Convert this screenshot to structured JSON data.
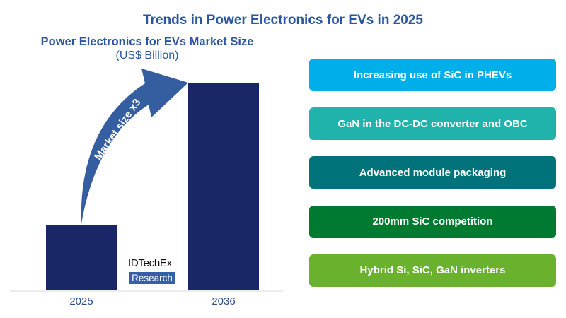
{
  "title": "Trends in Power Electronics for EVs in 2025",
  "chart_data": {
    "type": "bar",
    "title": "Power Electronics for EVs Market Size",
    "subtitle": "(US$ Billion)",
    "categories": [
      "2025",
      "2036"
    ],
    "values": [
      1,
      3.16
    ],
    "ylim": [
      0,
      3.5
    ],
    "grid": false,
    "bar_color": "#1a2766",
    "annotation": {
      "text": "Market size x3",
      "color": "#345ea0"
    }
  },
  "logo": {
    "name": "IDTechEx",
    "tagline": "Research"
  },
  "trends": [
    {
      "label": "Increasing use of SiC in PHEVs",
      "color": "#00aeea"
    },
    {
      "label": "GaN in the DC-DC converter and OBC",
      "color": "#1fb3ab"
    },
    {
      "label": "Advanced module packaging",
      "color": "#00737a"
    },
    {
      "label": "200mm SiC competition",
      "color": "#007a30"
    },
    {
      "label": "Hybrid Si, SiC, GaN inverters",
      "color": "#6ab22e"
    }
  ]
}
